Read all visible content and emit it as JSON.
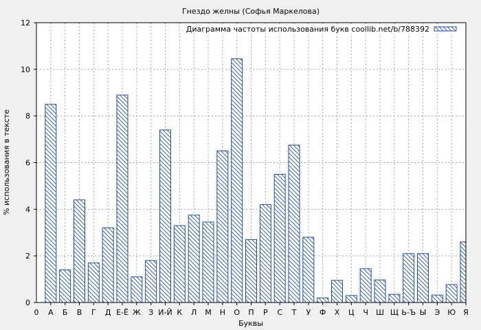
{
  "chart_data": {
    "type": "bar",
    "title": "Гнездо желны (Софья Маркелова)",
    "xlabel": "Буквы",
    "ylabel": "% использования в тексте",
    "legend": {
      "label": "Диаграмма частоты использования букв coollib.net/b/788392",
      "placement": "top-right"
    },
    "ylim": [
      0,
      12
    ],
    "yticks": [
      0,
      2,
      4,
      6,
      8,
      10,
      12
    ],
    "x_origin_label": "0",
    "grid": true,
    "bar_color": "#1f4ea8",
    "categories": [
      "А",
      "Б",
      "В",
      "Г",
      "Д",
      "Е-Ё",
      "Ж",
      "З",
      "И-Й",
      "К",
      "Л",
      "М",
      "Н",
      "О",
      "П",
      "Р",
      "С",
      "Т",
      "У",
      "Ф",
      "Х",
      "Ц",
      "Ч",
      "Ш",
      "Щ",
      "Ь-Ъ",
      "Ы",
      "Э",
      "Ю",
      "Я"
    ],
    "values": [
      8.5,
      1.4,
      4.4,
      1.7,
      3.2,
      8.9,
      1.1,
      1.8,
      7.4,
      3.3,
      3.75,
      3.45,
      6.5,
      10.45,
      2.7,
      4.2,
      5.5,
      6.75,
      2.8,
      0.2,
      0.95,
      0.3,
      1.45,
      0.97,
      0.35,
      2.1,
      2.1,
      0.32,
      0.77,
      2.6
    ]
  }
}
